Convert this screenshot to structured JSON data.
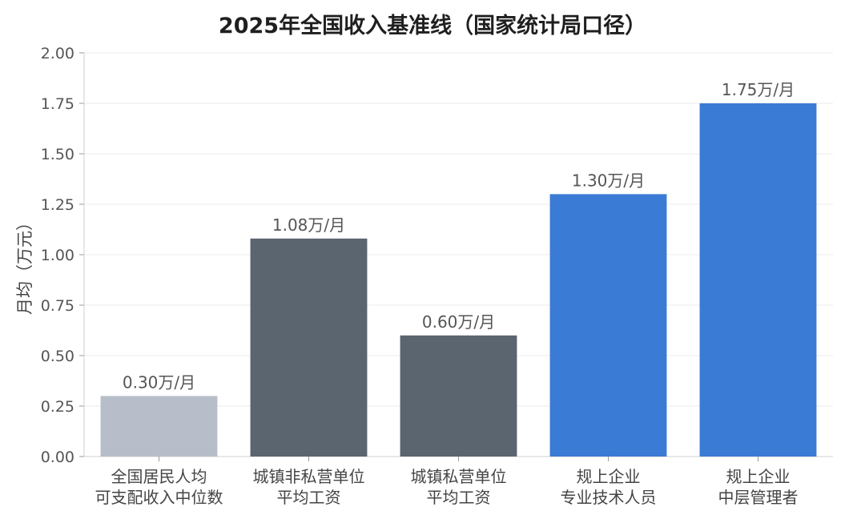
{
  "chart_data": {
    "type": "bar",
    "title": "2025年全国收入基准线（国家统计局口径）",
    "xlabel": "",
    "ylabel": "月均（万元）",
    "ylim": [
      0,
      2.0
    ],
    "yticks": [
      "0.00",
      "0.25",
      "0.50",
      "0.75",
      "1.00",
      "1.25",
      "1.50",
      "1.75",
      "2.00"
    ],
    "grid": true,
    "legend": "none",
    "categories": [
      [
        "全国居民人均",
        "可支配收入中位数"
      ],
      [
        "城镇非私营单位",
        "平均工资"
      ],
      [
        "城镇私营单位",
        "平均工资"
      ],
      [
        "规上企业",
        "专业技术人员"
      ],
      [
        "规上企业",
        "中层管理者"
      ]
    ],
    "values": [
      0.3,
      1.08,
      0.6,
      1.3,
      1.75
    ],
    "value_labels": [
      "0.30万/月",
      "1.08万/月",
      "0.60万/月",
      "1.30万/月",
      "1.75万/月"
    ],
    "colors": [
      "#b7bec9",
      "#5b6570",
      "#5b6570",
      "#3a7bd5",
      "#3a7bd5"
    ]
  }
}
